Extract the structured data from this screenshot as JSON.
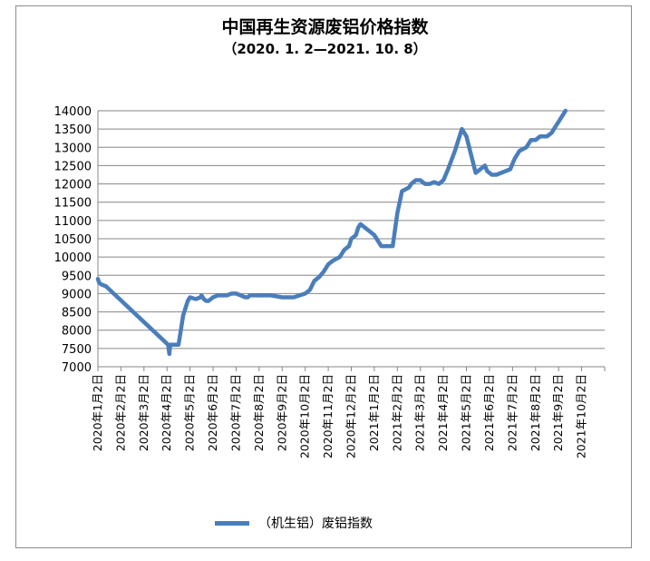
{
  "chart_data": {
    "type": "line",
    "title": "中国再生资源废铝价格指数",
    "subtitle": "（2020. 1. 2—2021. 10. 8）",
    "ylim": [
      7000,
      14000
    ],
    "yticks": [
      "7000",
      "7500",
      "8000",
      "8500",
      "9000",
      "9500",
      "10000",
      "10500",
      "11000",
      "11500",
      "12000",
      "12500",
      "13000",
      "13500",
      "14000"
    ],
    "grid": true,
    "legend_position": "bottom",
    "categories": [
      "2020年1月2日",
      "2020年2月2日",
      "2020年3月2日",
      "2020年4月2日",
      "2020年5月2日",
      "2020年6月2日",
      "2020年7月2日",
      "2020年8月2日",
      "2020年9月2日",
      "2020年10月2日",
      "2020年11月2日",
      "2020年12月2日",
      "2021年1月2日",
      "2021年2月2日",
      "2021年3月2日",
      "2021年4月2日",
      "2021年5月2日",
      "2021年6月2日",
      "2021年7月2日",
      "2021年8月2日",
      "2021年9月2日",
      "2021年10月2日"
    ],
    "series": [
      {
        "name": "（机生铝）废铝指数",
        "color": "#4a7ebb",
        "x": [
          0,
          0.05,
          0.15,
          0.35,
          3.05,
          3.1,
          3.12,
          3.15,
          3.5,
          3.6,
          3.7,
          3.8,
          3.9,
          4.0,
          4.25,
          4.45,
          4.5,
          4.6,
          4.7,
          4.8,
          4.9,
          5.0,
          5.2,
          5.4,
          5.6,
          5.8,
          6.0,
          6.2,
          6.4,
          6.5,
          6.6,
          6.8,
          7.0,
          7.2,
          7.5,
          8.0,
          8.5,
          9.0,
          9.2,
          9.4,
          9.5,
          9.6,
          9.8,
          10.0,
          10.2,
          10.5,
          10.7,
          10.9,
          11.0,
          11.2,
          11.3,
          11.4,
          11.6,
          11.8,
          12.0,
          12.1,
          12.3,
          12.6,
          12.8,
          13.0,
          13.2,
          13.5,
          13.6,
          13.8,
          14.0,
          14.2,
          14.4,
          14.6,
          14.8,
          15.0,
          15.2,
          15.5,
          15.8,
          16.0,
          16.2,
          16.4,
          16.6,
          16.8,
          16.9,
          17.0,
          17.1,
          17.3,
          17.5,
          17.7,
          17.9,
          18.1,
          18.3,
          18.6,
          18.8,
          19.0,
          19.2,
          19.5,
          19.7,
          19.8,
          19.9,
          20.0,
          20.1,
          20.2,
          20.3
        ],
        "values": [
          9400,
          9300,
          9250,
          9200,
          7600,
          7350,
          7500,
          7600,
          7600,
          8000,
          8400,
          8600,
          8800,
          8900,
          8850,
          8900,
          8950,
          8850,
          8800,
          8800,
          8850,
          8900,
          8950,
          8950,
          8950,
          9000,
          9000,
          8950,
          8900,
          8900,
          8950,
          8950,
          8950,
          8950,
          8950,
          8900,
          8900,
          9000,
          9100,
          9350,
          9400,
          9450,
          9600,
          9800,
          9900,
          10000,
          10200,
          10300,
          10500,
          10600,
          10800,
          10900,
          10800,
          10700,
          10600,
          10500,
          10300,
          10300,
          10300,
          11200,
          11800,
          11900,
          12000,
          12100,
          12100,
          12000,
          12000,
          12050,
          12000,
          12100,
          12400,
          12900,
          13500,
          13300,
          12800,
          12300,
          12400,
          12500,
          12350,
          12300,
          12250,
          12250,
          12300,
          12350,
          12400,
          12700,
          12900,
          13000,
          13200,
          13200,
          13300,
          13300,
          13400,
          13500,
          13600,
          13700,
          13800,
          13900,
          14000
        ]
      }
    ]
  }
}
